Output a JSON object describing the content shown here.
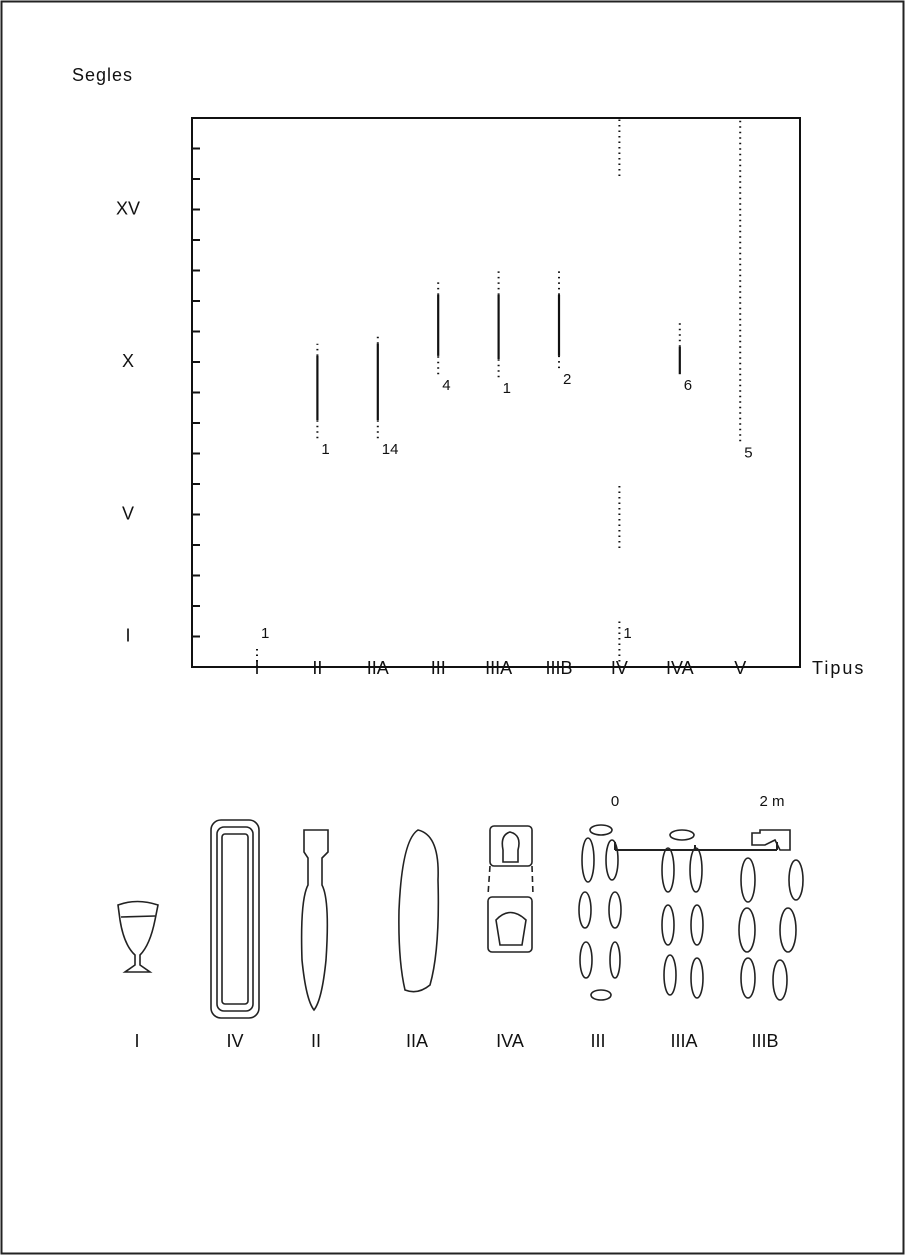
{
  "chart_data": {
    "type": "range",
    "y_label": "Segles",
    "x_label": "Tipus",
    "categories": [
      "I",
      "II",
      "IIA",
      "III",
      "IIIA",
      "IIIB",
      "IV",
      "IVA",
      "V"
    ],
    "ranges": [
      {
        "solid": null,
        "dotted": [
          [
            0,
            0.7
          ]
        ]
      },
      {
        "solid": [
          8.1,
          10.2
        ],
        "dotted": [
          [
            7.5,
            8.1
          ],
          [
            10.2,
            10.6
          ]
        ]
      },
      {
        "solid": [
          8.1,
          10.6
        ],
        "dotted": [
          [
            7.5,
            8.1
          ],
          [
            10.6,
            10.9
          ]
        ]
      },
      {
        "solid": [
          10.2,
          12.2
        ],
        "dotted": [
          [
            9.6,
            10.2
          ],
          [
            12.2,
            12.7
          ]
        ]
      },
      {
        "solid": [
          10.1,
          12.2
        ],
        "dotted": [
          [
            9.5,
            10.1
          ],
          [
            12.2,
            13
          ]
        ]
      },
      {
        "solid": [
          10.2,
          12.2
        ],
        "dotted": [
          [
            9.8,
            10.2
          ],
          [
            12.2,
            13.1
          ]
        ]
      },
      {
        "solid": null,
        "dotted": [
          [
            0,
            1.5
          ],
          [
            3.9,
            6
          ],
          [
            16.1,
            18
          ]
        ]
      },
      {
        "solid": [
          9.6,
          10.5
        ],
        "dotted": [
          [
            10.5,
            11.3
          ]
        ]
      },
      {
        "solid": null,
        "dotted": [
          [
            7.4,
            18
          ]
        ]
      }
    ],
    "counts": [
      1,
      1,
      14,
      4,
      1,
      2,
      1,
      6,
      5
    ],
    "ylim": [
      0,
      18
    ],
    "yticks": [
      {
        "value": 1,
        "label": "I"
      },
      {
        "value": 5,
        "label": "V"
      },
      {
        "value": 10,
        "label": "X"
      },
      {
        "value": 15,
        "label": "XV"
      }
    ],
    "minor_ticks": [
      1,
      2,
      3,
      4,
      5,
      6,
      7,
      8,
      9,
      10,
      11,
      12,
      13,
      14,
      15,
      16,
      17
    ],
    "color": "#111111"
  },
  "figures": {
    "labels": [
      "I",
      "IV",
      "II",
      "IIA",
      "IVA",
      "III",
      "IIIA",
      "IIIB"
    ]
  },
  "scale_bar": {
    "start": "0",
    "end": "2 m"
  }
}
